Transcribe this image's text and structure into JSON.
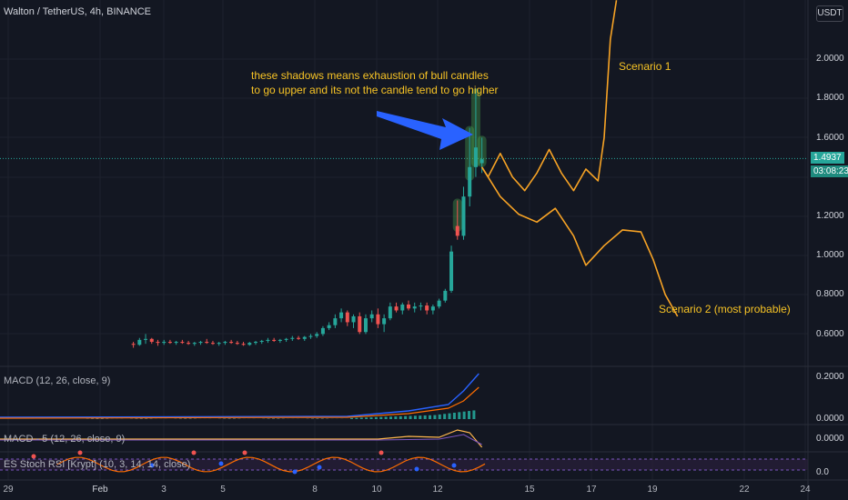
{
  "header": {
    "symbol": "Walton / TetherUS, 4h, BINANCE",
    "unit": "USDT"
  },
  "annotations": {
    "line1": "these shadows means exhaustion of bull candles",
    "line2": "to go upper and its not the candle tend to go higher",
    "scenario1": "Scenario 1",
    "scenario2": "Scenario 2 (most probable)"
  },
  "price_badge": {
    "price": "1.4937",
    "countdown": "03:08:23"
  },
  "colors": {
    "bull": "#26a69a",
    "bear": "#ef5350",
    "scenario": "#f7a325",
    "arrow": "#2962ff",
    "shadow": "#4caf50"
  },
  "chart_data": {
    "type": "line",
    "price_axis_ticks": [
      "2.0000",
      "1.8000",
      "1.6000",
      "1.2000",
      "1.0000",
      "0.8000",
      "0.6000"
    ],
    "x_ticks": [
      "29",
      "Feb",
      "3",
      "5",
      "8",
      "10",
      "12",
      "15",
      "17",
      "19",
      "22",
      "24"
    ],
    "macd_panel": {
      "label": "MACD (12, 26, close, 9)",
      "ticks": [
        "0.2000",
        "0.0000"
      ]
    },
    "macd5_panel": {
      "label": "MACD - 5 (12, 26, close, 9)",
      "ticks": [
        "0.0000"
      ]
    },
    "stoch_panel": {
      "label": "ES Stoch RSI [Krypt] (10, 3, 14, 14, close)",
      "ticks": [
        "0.0"
      ]
    },
    "candles": [
      {
        "d": 2.0,
        "o": 0.55,
        "h": 0.56,
        "l": 0.53,
        "c": 0.545
      },
      {
        "d": 2.2,
        "o": 0.545,
        "h": 0.58,
        "l": 0.54,
        "c": 0.57
      },
      {
        "d": 2.4,
        "o": 0.57,
        "h": 0.6,
        "l": 0.55,
        "c": 0.575
      },
      {
        "d": 2.6,
        "o": 0.575,
        "h": 0.58,
        "l": 0.55,
        "c": 0.56
      },
      {
        "d": 2.8,
        "o": 0.56,
        "h": 0.57,
        "l": 0.54,
        "c": 0.555
      },
      {
        "d": 3.0,
        "o": 0.555,
        "h": 0.57,
        "l": 0.545,
        "c": 0.56
      },
      {
        "d": 3.2,
        "o": 0.56,
        "h": 0.57,
        "l": 0.55,
        "c": 0.555
      },
      {
        "d": 3.4,
        "o": 0.555,
        "h": 0.565,
        "l": 0.545,
        "c": 0.56
      },
      {
        "d": 3.6,
        "o": 0.56,
        "h": 0.57,
        "l": 0.55,
        "c": 0.555
      },
      {
        "d": 3.8,
        "o": 0.555,
        "h": 0.565,
        "l": 0.545,
        "c": 0.55
      },
      {
        "d": 4.0,
        "o": 0.55,
        "h": 0.56,
        "l": 0.54,
        "c": 0.555
      },
      {
        "d": 4.2,
        "o": 0.555,
        "h": 0.565,
        "l": 0.545,
        "c": 0.56
      },
      {
        "d": 4.4,
        "o": 0.56,
        "h": 0.575,
        "l": 0.55,
        "c": 0.555
      },
      {
        "d": 4.6,
        "o": 0.555,
        "h": 0.565,
        "l": 0.545,
        "c": 0.55
      },
      {
        "d": 4.8,
        "o": 0.55,
        "h": 0.56,
        "l": 0.54,
        "c": 0.555
      },
      {
        "d": 5.0,
        "o": 0.555,
        "h": 0.565,
        "l": 0.545,
        "c": 0.56
      },
      {
        "d": 5.2,
        "o": 0.56,
        "h": 0.57,
        "l": 0.55,
        "c": 0.555
      },
      {
        "d": 5.4,
        "o": 0.555,
        "h": 0.565,
        "l": 0.545,
        "c": 0.55
      },
      {
        "d": 5.6,
        "o": 0.55,
        "h": 0.56,
        "l": 0.54,
        "c": 0.545
      },
      {
        "d": 5.8,
        "o": 0.545,
        "h": 0.56,
        "l": 0.54,
        "c": 0.555
      },
      {
        "d": 6.0,
        "o": 0.555,
        "h": 0.565,
        "l": 0.545,
        "c": 0.56
      },
      {
        "d": 6.2,
        "o": 0.56,
        "h": 0.57,
        "l": 0.55,
        "c": 0.565
      },
      {
        "d": 6.4,
        "o": 0.565,
        "h": 0.58,
        "l": 0.555,
        "c": 0.57
      },
      {
        "d": 6.6,
        "o": 0.57,
        "h": 0.58,
        "l": 0.56,
        "c": 0.565
      },
      {
        "d": 6.8,
        "o": 0.565,
        "h": 0.575,
        "l": 0.555,
        "c": 0.57
      },
      {
        "d": 7.0,
        "o": 0.57,
        "h": 0.58,
        "l": 0.56,
        "c": 0.575
      },
      {
        "d": 7.2,
        "o": 0.575,
        "h": 0.59,
        "l": 0.565,
        "c": 0.58
      },
      {
        "d": 7.4,
        "o": 0.58,
        "h": 0.59,
        "l": 0.57,
        "c": 0.575
      },
      {
        "d": 7.6,
        "o": 0.575,
        "h": 0.59,
        "l": 0.565,
        "c": 0.585
      },
      {
        "d": 7.8,
        "o": 0.585,
        "h": 0.6,
        "l": 0.575,
        "c": 0.59
      },
      {
        "d": 8.0,
        "o": 0.59,
        "h": 0.61,
        "l": 0.58,
        "c": 0.6
      },
      {
        "d": 8.2,
        "o": 0.6,
        "h": 0.64,
        "l": 0.59,
        "c": 0.63
      },
      {
        "d": 8.4,
        "o": 0.63,
        "h": 0.66,
        "l": 0.62,
        "c": 0.645
      },
      {
        "d": 8.6,
        "o": 0.645,
        "h": 0.7,
        "l": 0.63,
        "c": 0.68
      },
      {
        "d": 8.8,
        "o": 0.68,
        "h": 0.73,
        "l": 0.66,
        "c": 0.71
      },
      {
        "d": 9.0,
        "o": 0.71,
        "h": 0.72,
        "l": 0.64,
        "c": 0.66
      },
      {
        "d": 9.2,
        "o": 0.66,
        "h": 0.7,
        "l": 0.63,
        "c": 0.69
      },
      {
        "d": 9.4,
        "o": 0.69,
        "h": 0.71,
        "l": 0.6,
        "c": 0.61
      },
      {
        "d": 9.6,
        "o": 0.61,
        "h": 0.7,
        "l": 0.6,
        "c": 0.68
      },
      {
        "d": 9.8,
        "o": 0.68,
        "h": 0.72,
        "l": 0.66,
        "c": 0.7
      },
      {
        "d": 10.0,
        "o": 0.7,
        "h": 0.73,
        "l": 0.63,
        "c": 0.65
      },
      {
        "d": 10.2,
        "o": 0.65,
        "h": 0.7,
        "l": 0.61,
        "c": 0.68
      },
      {
        "d": 10.4,
        "o": 0.68,
        "h": 0.76,
        "l": 0.67,
        "c": 0.74
      },
      {
        "d": 10.6,
        "o": 0.74,
        "h": 0.76,
        "l": 0.71,
        "c": 0.72
      },
      {
        "d": 10.8,
        "o": 0.72,
        "h": 0.76,
        "l": 0.7,
        "c": 0.75
      },
      {
        "d": 11.0,
        "o": 0.75,
        "h": 0.77,
        "l": 0.72,
        "c": 0.73
      },
      {
        "d": 11.2,
        "o": 0.73,
        "h": 0.76,
        "l": 0.71,
        "c": 0.74
      },
      {
        "d": 11.4,
        "o": 0.74,
        "h": 0.76,
        "l": 0.72,
        "c": 0.745
      },
      {
        "d": 11.6,
        "o": 0.745,
        "h": 0.76,
        "l": 0.7,
        "c": 0.72
      },
      {
        "d": 11.8,
        "o": 0.72,
        "h": 0.75,
        "l": 0.7,
        "c": 0.74
      },
      {
        "d": 12.0,
        "o": 0.74,
        "h": 0.78,
        "l": 0.73,
        "c": 0.77
      },
      {
        "d": 12.2,
        "o": 0.77,
        "h": 0.83,
        "l": 0.76,
        "c": 0.82
      },
      {
        "d": 12.4,
        "o": 0.82,
        "h": 1.05,
        "l": 0.81,
        "c": 1.02
      },
      {
        "d": 12.6,
        "o": 1.15,
        "h": 1.28,
        "l": 1.08,
        "c": 1.1
      },
      {
        "d": 12.8,
        "o": 1.1,
        "h": 1.35,
        "l": 1.08,
        "c": 1.3
      },
      {
        "d": 13.0,
        "o": 1.3,
        "h": 1.65,
        "l": 1.25,
        "c": 1.45
      },
      {
        "d": 13.2,
        "o": 1.45,
        "h": 1.85,
        "l": 1.4,
        "c": 1.55
      },
      {
        "d": 13.4,
        "o": 1.47,
        "h": 1.6,
        "l": 1.42,
        "c": 1.49
      }
    ],
    "shadow_highlights": [
      {
        "d": 12.6,
        "low": 1.12,
        "high": 1.29
      },
      {
        "d": 13.0,
        "low": 1.38,
        "high": 1.66
      },
      {
        "d": 13.2,
        "low": 1.45,
        "high": 1.85
      },
      {
        "d": 13.4,
        "low": 1.45,
        "high": 1.61
      }
    ],
    "series": [
      {
        "name": "Scenario 1",
        "x": [
          13.4,
          13.6,
          14.0,
          14.4,
          14.8,
          15.2,
          15.6,
          16.0,
          16.4,
          16.8,
          17.2,
          17.4,
          17.6,
          17.8
        ],
        "y": [
          1.45,
          1.4,
          1.52,
          1.4,
          1.33,
          1.42,
          1.54,
          1.42,
          1.33,
          1.44,
          1.38,
          1.6,
          2.1,
          2.3
        ]
      },
      {
        "name": "Scenario 2 (most probable)",
        "x": [
          13.4,
          14.0,
          14.6,
          15.2,
          15.8,
          16.4,
          16.8,
          17.4,
          18.0,
          18.6,
          19.0,
          19.4,
          19.8
        ],
        "y": [
          1.45,
          1.3,
          1.21,
          1.17,
          1.24,
          1.1,
          0.95,
          1.05,
          1.13,
          1.12,
          0.98,
          0.8,
          0.69
        ]
      }
    ]
  }
}
